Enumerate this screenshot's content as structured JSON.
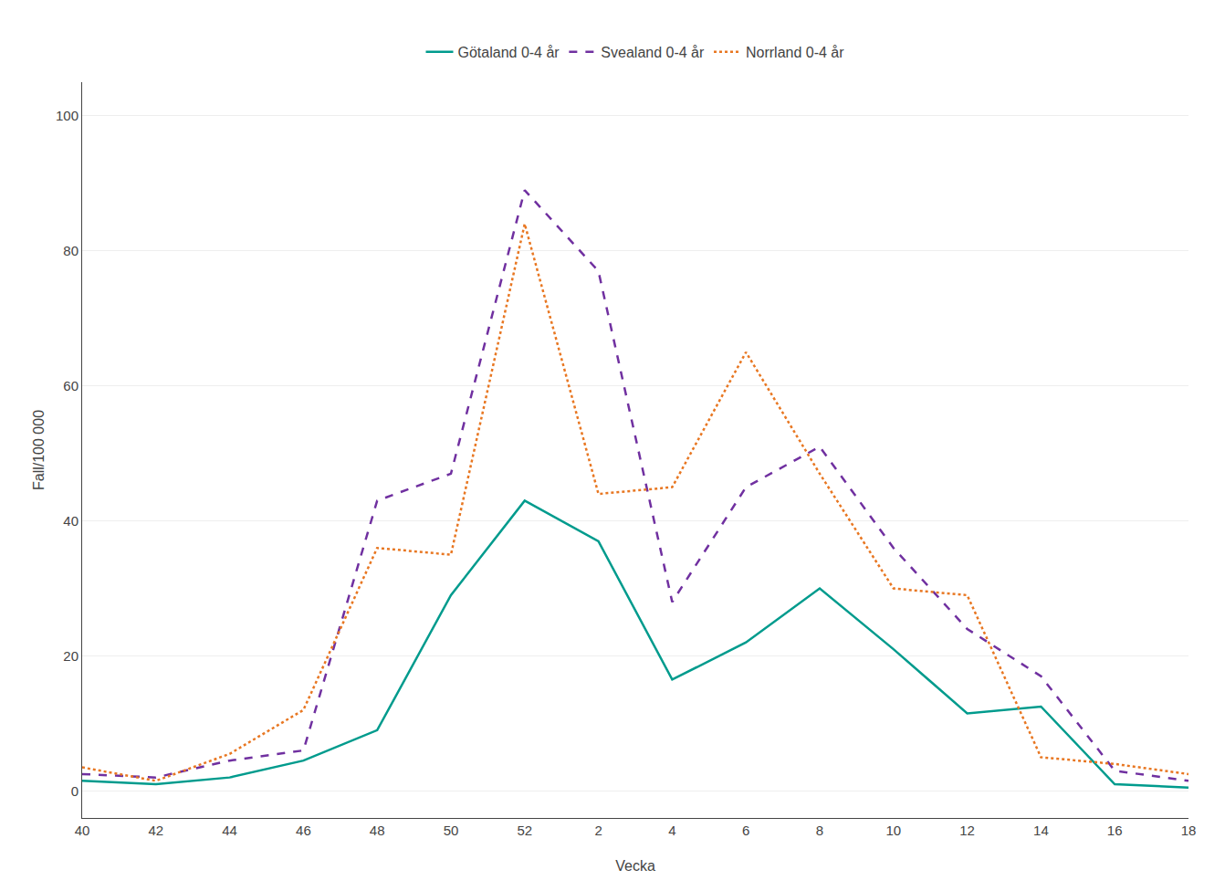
{
  "chart_data": {
    "type": "line",
    "xlabel": "Vecka",
    "ylabel": "Fall/100 000",
    "categories": [
      "40",
      "42",
      "44",
      "46",
      "48",
      "50",
      "52",
      "2",
      "4",
      "6",
      "8",
      "10",
      "12",
      "14",
      "16",
      "18"
    ],
    "series": [
      {
        "name": "Götaland 0-4 år",
        "color": "#009B8D",
        "line_style": "solid",
        "values": [
          1.5,
          1.0,
          2.0,
          4.5,
          9.0,
          29.0,
          43.0,
          37.0,
          16.5,
          22.0,
          30.0,
          21.0,
          11.5,
          12.5,
          1.0,
          0.5
        ]
      },
      {
        "name": "Svealand 0-4 år",
        "color": "#7030A0",
        "line_style": "dashed",
        "values": [
          2.5,
          2.0,
          4.5,
          6.0,
          43.0,
          47.0,
          89.0,
          77.0,
          28.0,
          45.0,
          51.0,
          36.0,
          24.0,
          17.0,
          3.0,
          1.5
        ]
      },
      {
        "name": "Norrland 0-4 år",
        "color": "#E87722",
        "line_style": "dotted",
        "values": [
          3.5,
          1.5,
          5.5,
          12.0,
          36.0,
          35.0,
          84.0,
          44.0,
          45.0,
          65.0,
          47.0,
          30.0,
          29.0,
          5.0,
          4.0,
          2.5
        ]
      }
    ],
    "ylim": [
      -4,
      105
    ],
    "yticks": [
      0,
      20,
      40,
      60,
      80,
      100
    ],
    "grid": true,
    "legend": "top"
  }
}
